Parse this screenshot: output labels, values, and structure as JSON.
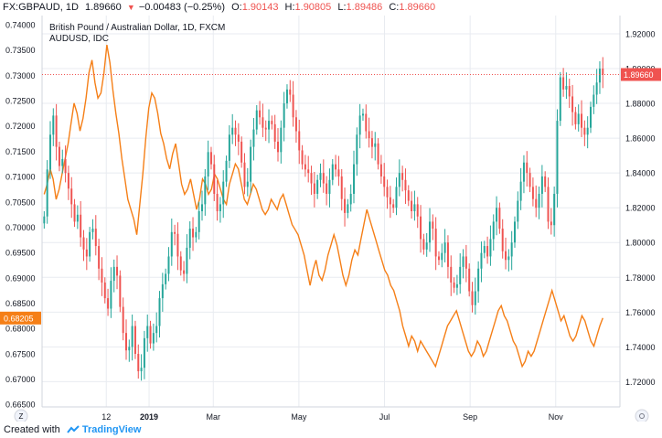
{
  "header": {
    "symbol": "FX:GBPAUD, 1D",
    "last": "1.89660",
    "change": "−0.00483 (−0.25%)",
    "o_label": "O:",
    "o_value": "1.90143",
    "h_label": "H:",
    "h_value": "1.90805",
    "l_label": "L:",
    "l_value": "1.89486",
    "c_label": "C:",
    "c_value": "1.89660"
  },
  "footer": {
    "created_with": "Created with",
    "brand": "TradingView"
  },
  "colors": {
    "up": "#26a69a",
    "down": "#ef5350",
    "overlay": "#f57f17",
    "grid": "#e8ebf0",
    "text": "#131722"
  },
  "chart_data": {
    "type": "line",
    "title": "British Pound / Australian Dollar, 1D, FXCM",
    "overlay_label": "AUDUSD, IDC",
    "x_tick_labels": [
      "12",
      "2019",
      "Mar",
      "May",
      "Jul",
      "Sep",
      "Nov"
    ],
    "x_tick_pos": [
      1.5,
      2.5,
      4,
      6,
      8,
      10,
      12
    ],
    "xlim": [
      0,
      13.5
    ],
    "left_axis": {
      "ticks": [
        "0.74000",
        "0.73500",
        "0.73000",
        "0.72500",
        "0.72000",
        "0.71500",
        "0.71000",
        "0.70500",
        "0.70000",
        "0.69500",
        "0.69000",
        "0.68500",
        "0.68000",
        "0.67500",
        "0.67000",
        "0.66500"
      ],
      "ylim": [
        0.6645,
        0.7418
      ],
      "current_label": "0.68205",
      "current_value": 0.68205
    },
    "right_axis": {
      "ticks": [
        "1.92000",
        "1.90000",
        "1.88000",
        "1.86000",
        "1.84000",
        "1.82000",
        "1.80000",
        "1.78000",
        "1.76000",
        "1.74000",
        "1.72000"
      ],
      "ylim": [
        1.7055,
        1.9305
      ],
      "current_label": "1.89660",
      "current_value": 1.8966
    },
    "series": [
      {
        "name": "FX:GBPAUD",
        "kind": "candles",
        "axis": "right",
        "x_start": 0.05,
        "x_end": 13.1,
        "close": [
          1.815,
          1.842,
          1.862,
          1.873,
          1.855,
          1.844,
          1.848,
          1.84,
          1.831,
          1.822,
          1.812,
          1.816,
          1.803,
          1.796,
          1.792,
          1.806,
          1.808,
          1.798,
          1.785,
          1.777,
          1.768,
          1.762,
          1.778,
          1.786,
          1.781,
          1.763,
          1.748,
          1.738,
          1.74,
          1.752,
          1.736,
          1.726,
          1.728,
          1.745,
          1.752,
          1.742,
          1.748,
          1.752,
          1.768,
          1.776,
          1.782,
          1.792,
          1.806,
          1.805,
          1.792,
          1.784,
          1.782,
          1.797,
          1.808,
          1.803,
          1.806,
          1.818,
          1.822,
          1.838,
          1.852,
          1.845,
          1.828,
          1.818,
          1.822,
          1.835,
          1.847,
          1.862,
          1.866,
          1.862,
          1.858,
          1.846,
          1.832,
          1.835,
          1.855,
          1.865,
          1.876,
          1.872,
          1.866,
          1.865,
          1.87,
          1.868,
          1.858,
          1.852,
          1.866,
          1.88,
          1.888,
          1.885,
          1.872,
          1.864,
          1.853,
          1.845,
          1.842,
          1.84,
          1.834,
          1.828,
          1.836,
          1.84,
          1.834,
          1.828,
          1.836,
          1.845,
          1.842,
          1.838,
          1.825,
          1.817,
          1.822,
          1.828,
          1.845,
          1.862,
          1.873,
          1.874,
          1.864,
          1.86,
          1.855,
          1.857,
          1.845,
          1.838,
          1.832,
          1.826,
          1.822,
          1.82,
          1.832,
          1.84,
          1.836,
          1.83,
          1.824,
          1.818,
          1.822,
          1.815,
          1.802,
          1.796,
          1.8,
          1.812,
          1.808,
          1.792,
          1.79,
          1.794,
          1.8,
          1.786,
          1.777,
          1.774,
          1.776,
          1.786,
          1.792,
          1.785,
          1.772,
          1.764,
          1.772,
          1.785,
          1.794,
          1.798,
          1.792,
          1.802,
          1.812,
          1.82,
          1.808,
          1.795,
          1.79,
          1.792,
          1.8,
          1.812,
          1.824,
          1.835,
          1.846,
          1.84,
          1.832,
          1.825,
          1.82,
          1.828,
          1.838,
          1.832,
          1.812,
          1.81,
          1.828,
          1.87,
          1.895,
          1.888,
          1.89,
          1.884,
          1.875,
          1.868,
          1.874,
          1.866,
          1.862,
          1.866,
          1.878,
          1.885,
          1.892,
          1.9,
          1.8966
        ]
      },
      {
        "name": "AUDUSD, IDC",
        "kind": "line",
        "axis": "left",
        "x_start": 0.05,
        "x_end": 13.1,
        "values": [
          0.7065,
          0.7085,
          0.7115,
          0.7095,
          0.7055,
          0.7075,
          0.7105,
          0.7135,
          0.7165,
          0.7205,
          0.7245,
          0.7225,
          0.719,
          0.7215,
          0.7255,
          0.7305,
          0.733,
          0.7285,
          0.7255,
          0.7265,
          0.7305,
          0.736,
          0.7325,
          0.727,
          0.7225,
          0.7185,
          0.7135,
          0.7095,
          0.7055,
          0.7035,
          0.7015,
          0.6985,
          0.7045,
          0.7105,
          0.7175,
          0.7235,
          0.7265,
          0.7255,
          0.7225,
          0.7185,
          0.7165,
          0.7135,
          0.7115,
          0.7145,
          0.7165,
          0.7125,
          0.7085,
          0.7065,
          0.7075,
          0.7095,
          0.7065,
          0.7035,
          0.7055,
          0.7095,
          0.7085,
          0.7065,
          0.7075,
          0.7105,
          0.7095,
          0.7075,
          0.7055,
          0.7045,
          0.7085,
          0.7105,
          0.7125,
          0.7115,
          0.7085,
          0.7055,
          0.7045,
          0.7065,
          0.7085,
          0.7075,
          0.7055,
          0.7035,
          0.7025,
          0.7035,
          0.7055,
          0.7045,
          0.7035,
          0.7055,
          0.7065,
          0.7045,
          0.7025,
          0.7005,
          0.6995,
          0.6985,
          0.6965,
          0.6945,
          0.6915,
          0.6885,
          0.6915,
          0.6935,
          0.6905,
          0.6895,
          0.6915,
          0.6945,
          0.6965,
          0.6985,
          0.6965,
          0.6935,
          0.6905,
          0.6885,
          0.6905,
          0.6935,
          0.6955,
          0.6945,
          0.6975,
          0.7005,
          0.7035,
          0.7015,
          0.6995,
          0.6975,
          0.6955,
          0.6935,
          0.6915,
          0.6905,
          0.6885,
          0.6875,
          0.6855,
          0.6835,
          0.6805,
          0.6785,
          0.6765,
          0.6785,
          0.6775,
          0.6755,
          0.6775,
          0.6765,
          0.6755,
          0.6745,
          0.6735,
          0.6725,
          0.6745,
          0.6765,
          0.6785,
          0.6805,
          0.6815,
          0.6825,
          0.6835,
          0.6815,
          0.6795,
          0.6775,
          0.6755,
          0.6745,
          0.6755,
          0.6775,
          0.6765,
          0.6745,
          0.6755,
          0.6775,
          0.6795,
          0.6815,
          0.6835,
          0.6845,
          0.6825,
          0.6815,
          0.6795,
          0.6775,
          0.6765,
          0.6745,
          0.6725,
          0.6735,
          0.6755,
          0.6745,
          0.6755,
          0.6775,
          0.6795,
          0.6815,
          0.6835,
          0.6855,
          0.6875,
          0.6855,
          0.6835,
          0.6815,
          0.6825,
          0.6805,
          0.6785,
          0.6775,
          0.6785,
          0.6805,
          0.6825,
          0.6815,
          0.6795,
          0.6775,
          0.6765,
          0.6785,
          0.6805,
          0.68205
        ]
      }
    ],
    "price_line": 1.8966,
    "grid": true,
    "legend": "top-left"
  }
}
